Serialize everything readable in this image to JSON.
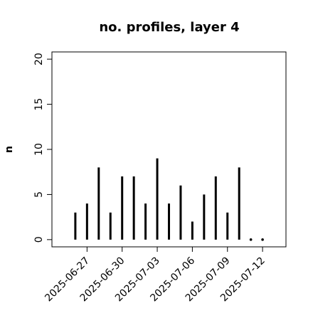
{
  "chart_data": {
    "type": "histogram_spikes",
    "title": "no. profiles, layer 4",
    "y_label": "n",
    "x": [
      "2025-06-26",
      "2025-06-27",
      "2025-06-28",
      "2025-06-29",
      "2025-06-30",
      "2025-07-01",
      "2025-07-02",
      "2025-07-03",
      "2025-07-04",
      "2025-07-05",
      "2025-07-06",
      "2025-07-07",
      "2025-07-08",
      "2025-07-09",
      "2025-07-10",
      "2025-07-11",
      "2025-07-12"
    ],
    "values": [
      3,
      4,
      8,
      3,
      7,
      7,
      4,
      9,
      4,
      6,
      2,
      5,
      7,
      3,
      8,
      0,
      0
    ],
    "color": "#000000",
    "xlim": [
      "2025-06-24",
      "2025-07-14"
    ],
    "xticks": [
      "2025-06-27",
      "2025-06-30",
      "2025-07-03",
      "2025-07-06",
      "2025-07-09",
      "2025-07-12"
    ],
    "xtick_colors": [
      "#000000",
      "#000000",
      "#228b22",
      "#000000",
      "#000000",
      "#000000"
    ],
    "ylim": [
      -0.8,
      20.8
    ],
    "yticks": [
      0,
      5,
      10,
      15,
      20
    ]
  }
}
